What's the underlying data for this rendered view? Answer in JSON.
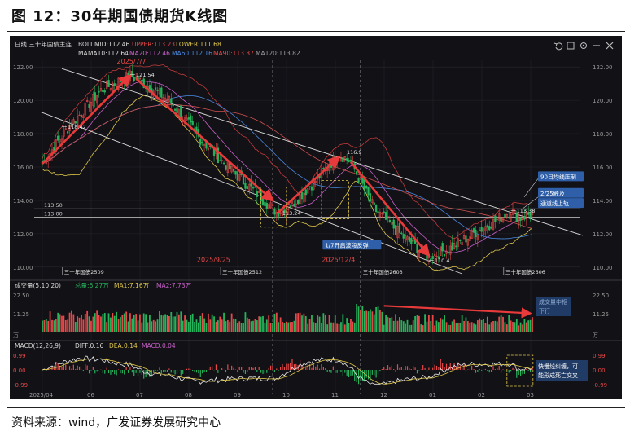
{
  "figure_title": "图 12：30年期国债期货K线图",
  "source": "资料来源：wind，广发证券发展研究中心",
  "toolbar": {
    "contract": "日线  三十年国债主连",
    "boll": "BOLL",
    "mid": "MID:112.46",
    "upper": "UPPER:113.23",
    "lower": "LOWER:111.68",
    "ma": "MA",
    "ma10": "MA10:112.64",
    "ma20": "MA20:112.46",
    "ma60": "MA60:112.16",
    "ma90": "MA90:113.37",
    "ma120": "MA120:113.82",
    "icons": [
      "undo-icon",
      "fullscreen-icon",
      "settings-icon",
      "minus-icon",
      "close-icon"
    ]
  },
  "colors": {
    "background": "#111116",
    "up": "#e84848",
    "down": "#26b35a",
    "trend_arrow": "#e83a3a",
    "channel": "#d9d9d9",
    "grid": "#26262d",
    "yellow": "#e0c84a",
    "label_box": "#2e5fa8",
    "axis_text": "#9a9a9a"
  },
  "chart_data": [
    {
      "type": "candlestick",
      "panel": "price",
      "y_ticks": [
        "122.00",
        "120.00",
        "118.00",
        "116.00",
        "114.00",
        "112.00",
        "110.00"
      ],
      "ylim": [
        109.6,
        122.4
      ],
      "x_ticks": [
        "2025/04",
        "06",
        "07",
        "08",
        "09",
        "10",
        "11",
        "12",
        "01",
        "02",
        "03"
      ],
      "anchors": [
        {
          "i": 0,
          "close": 116.2
        },
        {
          "i": 12,
          "close": 118.2
        },
        {
          "i": 30,
          "close": 120.6
        },
        {
          "i": 45,
          "close": 121.5
        },
        {
          "i": 52,
          "close": 121.0
        },
        {
          "i": 65,
          "close": 120.0
        },
        {
          "i": 80,
          "close": 117.8
        },
        {
          "i": 95,
          "close": 116.0
        },
        {
          "i": 110,
          "close": 114.4
        },
        {
          "i": 120,
          "close": 113.3
        },
        {
          "i": 128,
          "close": 113.8
        },
        {
          "i": 140,
          "close": 115.2
        },
        {
          "i": 152,
          "close": 116.8
        },
        {
          "i": 158,
          "close": 116.3
        },
        {
          "i": 170,
          "close": 113.5
        },
        {
          "i": 185,
          "close": 111.8
        },
        {
          "i": 198,
          "close": 110.6
        },
        {
          "i": 210,
          "close": 111.2
        },
        {
          "i": 222,
          "close": 112.1
        },
        {
          "i": 234,
          "close": 112.9
        },
        {
          "i": 240,
          "close": 113.4
        },
        {
          "i": 244,
          "close": 112.9
        },
        {
          "i": 250,
          "close": 113.2
        }
      ],
      "price_labels": [
        {
          "text": "121.54",
          "i": 45,
          "y": 121.54
        },
        {
          "text": "118.42",
          "i": 10,
          "y": 118.42
        },
        {
          "text": "113.24",
          "i": 120,
          "y": 113.24
        },
        {
          "text": "116.9",
          "i": 153,
          "y": 116.9
        },
        {
          "text": "110.4",
          "i": 198,
          "y": 110.4
        },
        {
          "text": "113.38",
          "i": 240,
          "y": 113.38
        }
      ],
      "ref_lines": [
        {
          "value": 113.5,
          "label": "113.50"
        },
        {
          "value": 113.0,
          "label": "113.00"
        }
      ],
      "date_labels": [
        {
          "text": "2025/7/7",
          "i": 44,
          "y": 122.2
        },
        {
          "text": "2025/9/25",
          "i": 85,
          "y": 110.3
        },
        {
          "text": "2025/12/4",
          "i": 149,
          "y": 110.3
        }
      ],
      "contract_labels": [
        {
          "text": "三十年国债2509",
          "i": 12
        },
        {
          "text": "三十年国债2512",
          "i": 93
        },
        {
          "text": "三十年国债2603",
          "i": 165
        },
        {
          "text": "三十年国债2606",
          "i": 238
        }
      ],
      "trend_arrows": [
        {
          "from": [
            0,
            116.2
          ],
          "to": [
            45,
            121.5
          ]
        },
        {
          "from": [
            48,
            121.3
          ],
          "to": [
            118,
            114.0
          ]
        },
        {
          "from": [
            120,
            113.2
          ],
          "to": [
            152,
            116.6
          ]
        },
        {
          "from": [
            158,
            116.3
          ],
          "to": [
            198,
            110.7
          ]
        }
      ],
      "annotations": [
        {
          "text": "90日均线压制",
          "i": 232,
          "y": 115.3
        },
        {
          "text": "2/25触及",
          "i": 232,
          "y": 114.3
        },
        {
          "text": "通道线上轨",
          "i": 232,
          "y": 113.7
        },
        {
          "text": "1/7开启波段反弹",
          "i": 154,
          "y": 111.2
        }
      ]
    },
    {
      "type": "bar",
      "panel": "volume",
      "header": "成交量(5,10,20)",
      "total": "总量:6.27万",
      "ma1": "MA1:7.16万",
      "ma2": "MA2:7.73万",
      "y_ticks": [
        "22.50",
        "11.25",
        "万"
      ],
      "ylim": [
        0,
        22.5
      ],
      "annotation_lines": [
        "成交量中枢",
        "下行"
      ]
    },
    {
      "type": "line",
      "panel": "macd",
      "header": "MACD(12,26,9)",
      "diff": "DIFF:0.16",
      "dea": "DEA:0.14",
      "macd": "MACD:0.04",
      "y_ticks": [
        "0.99",
        "0.00",
        "-0.99"
      ],
      "ylim": [
        -0.99,
        0.99
      ],
      "annotation_lines": [
        "快慢线纠缠，可",
        "能形成死亡交叉"
      ]
    }
  ]
}
